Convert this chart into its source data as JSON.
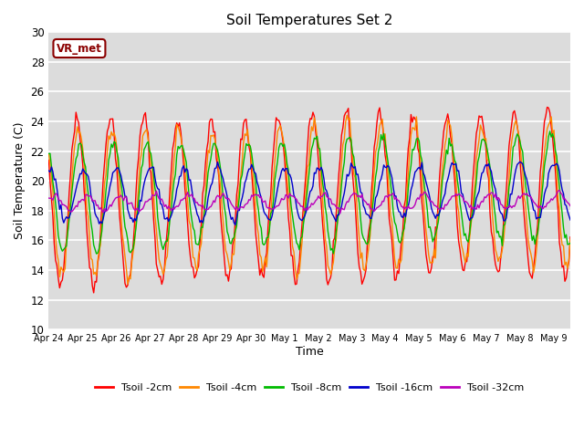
{
  "title": "Soil Temperatures Set 2",
  "xlabel": "Time",
  "ylabel": "Soil Temperature (C)",
  "ylim": [
    10,
    30
  ],
  "xlim_days": 15.5,
  "background_color": "#dcdcdc",
  "annotation_text": "VR_met",
  "annotation_color": "#8b0000",
  "tick_labels": [
    "Apr 24",
    "Apr 25",
    "Apr 26",
    "Apr 27",
    "Apr 28",
    "Apr 29",
    "Apr 30",
    "May 1",
    "May 2",
    "May 3",
    "May 4",
    "May 5",
    "May 6",
    "May 7",
    "May 8",
    "May 9"
  ],
  "series_colors": [
    "#ff0000",
    "#ff8800",
    "#00bb00",
    "#0000cc",
    "#bb00bb"
  ],
  "series_labels": [
    "Tsoil -2cm",
    "Tsoil -4cm",
    "Tsoil -8cm",
    "Tsoil -16cm",
    "Tsoil -32cm"
  ],
  "yticks": [
    10,
    12,
    14,
    16,
    18,
    20,
    22,
    24,
    26,
    28,
    30
  ],
  "n_points": 384,
  "n_days": 15.5
}
